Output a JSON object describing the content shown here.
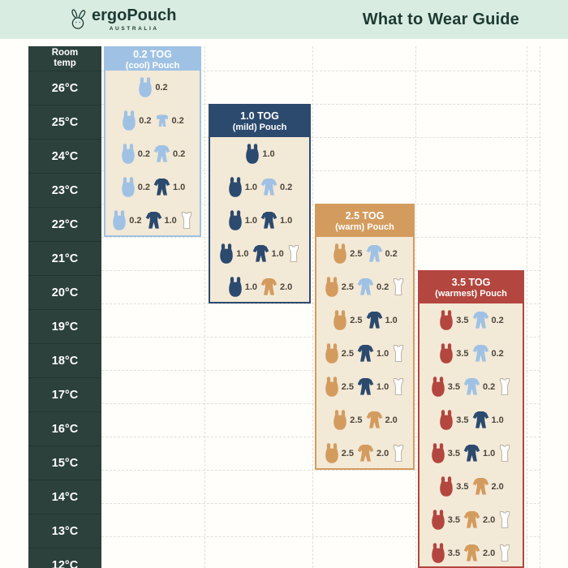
{
  "header": {
    "brand": "ergoPouch",
    "brand_sub": "AUSTRALIA",
    "title": "What to Wear Guide"
  },
  "temp_column": {
    "header": "Room temp",
    "temps": [
      "26°C",
      "25°C",
      "24°C",
      "23°C",
      "22°C",
      "21°C",
      "20°C",
      "19°C",
      "18°C",
      "17°C",
      "16°C",
      "15°C",
      "14°C",
      "13°C",
      "12°C"
    ]
  },
  "colors": {
    "mint": "#d9ece2",
    "dark_green": "#1d3a32",
    "temp_bg": "#2c413b",
    "light_blue": "#9fc2e4",
    "navy": "#2c4a6e",
    "camel": "#d39c5e",
    "brick": "#b3463e",
    "cream": "#f3e9d7",
    "grid": "#e2dfd8",
    "value_text": "#4c463c"
  },
  "chart_data": {
    "type": "table",
    "title": "What to Wear Guide",
    "row_axis_label": "Room temp",
    "temps_c": [
      26,
      25,
      24,
      23,
      22,
      21,
      20,
      19,
      18,
      17,
      16,
      15,
      14,
      13,
      12
    ],
    "icon_types": [
      "pouch",
      "suit",
      "romper",
      "singlet"
    ],
    "columns": [
      {
        "tog_label": "0.2 TOG",
        "subtitle": "(cool) Pouch",
        "accent": "light_blue",
        "header_temp": null,
        "rows": [
          {
            "temp": 26,
            "items": [
              {
                "icon": "pouch",
                "color": "light_blue",
                "tog": "0.2"
              }
            ]
          },
          {
            "temp": 25,
            "items": [
              {
                "icon": "pouch",
                "color": "light_blue",
                "tog": "0.2"
              },
              {
                "icon": "romper",
                "color": "light_blue",
                "tog": "0.2"
              }
            ]
          },
          {
            "temp": 24,
            "items": [
              {
                "icon": "pouch",
                "color": "light_blue",
                "tog": "0.2"
              },
              {
                "icon": "suit",
                "color": "light_blue",
                "tog": "0.2"
              }
            ]
          },
          {
            "temp": 23,
            "items": [
              {
                "icon": "pouch",
                "color": "light_blue",
                "tog": "0.2"
              },
              {
                "icon": "suit",
                "color": "navy",
                "tog": "1.0"
              }
            ]
          },
          {
            "temp": 22,
            "items": [
              {
                "icon": "pouch",
                "color": "light_blue",
                "tog": "0.2"
              },
              {
                "icon": "suit",
                "color": "navy",
                "tog": "1.0"
              },
              {
                "icon": "singlet"
              }
            ]
          }
        ]
      },
      {
        "tog_label": "1.0 TOG",
        "subtitle": "(mild) Pouch",
        "accent": "navy",
        "header_temp": 25,
        "rows": [
          {
            "temp": 24,
            "items": [
              {
                "icon": "pouch",
                "color": "navy",
                "tog": "1.0"
              }
            ]
          },
          {
            "temp": 23,
            "items": [
              {
                "icon": "pouch",
                "color": "navy",
                "tog": "1.0"
              },
              {
                "icon": "suit",
                "color": "light_blue",
                "tog": "0.2"
              }
            ]
          },
          {
            "temp": 22,
            "items": [
              {
                "icon": "pouch",
                "color": "navy",
                "tog": "1.0"
              },
              {
                "icon": "suit",
                "color": "navy",
                "tog": "1.0"
              }
            ]
          },
          {
            "temp": 21,
            "items": [
              {
                "icon": "pouch",
                "color": "navy",
                "tog": "1.0"
              },
              {
                "icon": "suit",
                "color": "navy",
                "tog": "1.0"
              },
              {
                "icon": "singlet"
              }
            ]
          },
          {
            "temp": 20,
            "items": [
              {
                "icon": "pouch",
                "color": "navy",
                "tog": "1.0"
              },
              {
                "icon": "suit",
                "color": "camel",
                "tog": "2.0"
              }
            ]
          }
        ]
      },
      {
        "tog_label": "2.5 TOG",
        "subtitle": "(warm) Pouch",
        "accent": "camel",
        "header_temp": 22,
        "rows": [
          {
            "temp": 21,
            "items": [
              {
                "icon": "pouch",
                "color": "camel",
                "tog": "2.5"
              },
              {
                "icon": "suit",
                "color": "light_blue",
                "tog": "0.2"
              }
            ]
          },
          {
            "temp": 20,
            "items": [
              {
                "icon": "pouch",
                "color": "camel",
                "tog": "2.5"
              },
              {
                "icon": "suit",
                "color": "light_blue",
                "tog": "0.2"
              },
              {
                "icon": "singlet"
              }
            ]
          },
          {
            "temp": 19,
            "items": [
              {
                "icon": "pouch",
                "color": "camel",
                "tog": "2.5"
              },
              {
                "icon": "suit",
                "color": "navy",
                "tog": "1.0"
              }
            ]
          },
          {
            "temp": 18,
            "items": [
              {
                "icon": "pouch",
                "color": "camel",
                "tog": "2.5"
              },
              {
                "icon": "suit",
                "color": "navy",
                "tog": "1.0"
              },
              {
                "icon": "singlet"
              }
            ]
          },
          {
            "temp": 17,
            "items": [
              {
                "icon": "pouch",
                "color": "camel",
                "tog": "2.5"
              },
              {
                "icon": "suit",
                "color": "navy",
                "tog": "1.0"
              },
              {
                "icon": "singlet"
              }
            ]
          },
          {
            "temp": 16,
            "items": [
              {
                "icon": "pouch",
                "color": "camel",
                "tog": "2.5"
              },
              {
                "icon": "suit",
                "color": "camel",
                "tog": "2.0"
              }
            ]
          },
          {
            "temp": 15,
            "items": [
              {
                "icon": "pouch",
                "color": "camel",
                "tog": "2.5"
              },
              {
                "icon": "suit",
                "color": "camel",
                "tog": "2.0"
              },
              {
                "icon": "singlet"
              }
            ]
          }
        ]
      },
      {
        "tog_label": "3.5 TOG",
        "subtitle": "(warmest) Pouch",
        "accent": "brick",
        "header_temp": 20,
        "rows": [
          {
            "temp": 19,
            "items": [
              {
                "icon": "pouch",
                "color": "brick",
                "tog": "3.5"
              },
              {
                "icon": "suit",
                "color": "light_blue",
                "tog": "0.2"
              }
            ]
          },
          {
            "temp": 18,
            "items": [
              {
                "icon": "pouch",
                "color": "brick",
                "tog": "3.5"
              },
              {
                "icon": "suit",
                "color": "light_blue",
                "tog": "0.2"
              }
            ]
          },
          {
            "temp": 17,
            "items": [
              {
                "icon": "pouch",
                "color": "brick",
                "tog": "3.5"
              },
              {
                "icon": "suit",
                "color": "light_blue",
                "tog": "0.2"
              },
              {
                "icon": "singlet"
              }
            ]
          },
          {
            "temp": 16,
            "items": [
              {
                "icon": "pouch",
                "color": "brick",
                "tog": "3.5"
              },
              {
                "icon": "suit",
                "color": "navy",
                "tog": "1.0"
              }
            ]
          },
          {
            "temp": 15,
            "items": [
              {
                "icon": "pouch",
                "color": "brick",
                "tog": "3.5"
              },
              {
                "icon": "suit",
                "color": "navy",
                "tog": "1.0"
              },
              {
                "icon": "singlet"
              }
            ]
          },
          {
            "temp": 14,
            "items": [
              {
                "icon": "pouch",
                "color": "brick",
                "tog": "3.5"
              },
              {
                "icon": "suit",
                "color": "camel",
                "tog": "2.0"
              }
            ]
          },
          {
            "temp": 13,
            "items": [
              {
                "icon": "pouch",
                "color": "brick",
                "tog": "3.5"
              },
              {
                "icon": "suit",
                "color": "camel",
                "tog": "2.0"
              },
              {
                "icon": "singlet"
              }
            ]
          },
          {
            "temp": 12,
            "items": [
              {
                "icon": "pouch",
                "color": "brick",
                "tog": "3.5"
              },
              {
                "icon": "suit",
                "color": "camel",
                "tog": "2.0"
              },
              {
                "icon": "singlet"
              }
            ]
          }
        ]
      }
    ]
  }
}
